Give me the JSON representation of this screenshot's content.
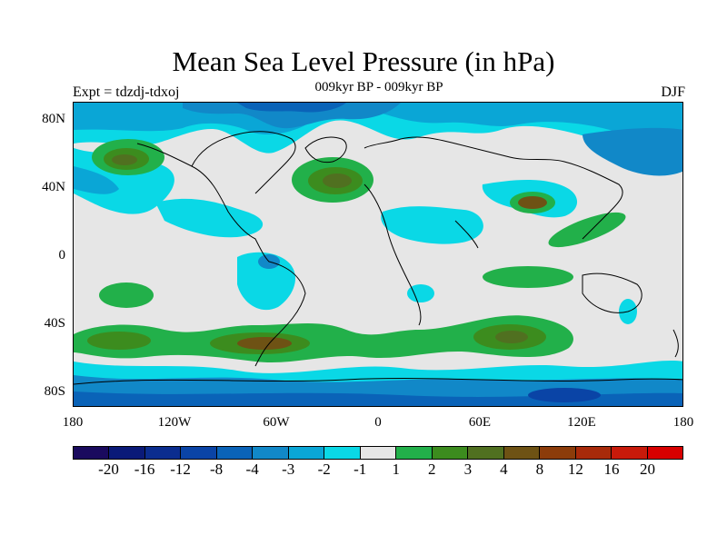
{
  "title": "Mean Sea Level Pressure (in hPa)",
  "subtitle": "009kyr BP - 009kyr BP",
  "experiment": "Expt = tdzdj-tdxoj",
  "season": "DJF",
  "lat_labels": [
    "80N",
    "40N",
    "0",
    "40S",
    "80S"
  ],
  "lon_labels": [
    "180",
    "120W",
    "60W",
    "0",
    "60E",
    "120E",
    "180"
  ],
  "colorbar": {
    "labels": [
      "-20",
      "-16",
      "-12",
      "-8",
      "-4",
      "-3",
      "-2",
      "-1",
      "1",
      "2",
      "3",
      "4",
      "8",
      "12",
      "16",
      "20"
    ],
    "colors": [
      "#1a0a5e",
      "#0a1a78",
      "#0b2d8f",
      "#0a44a6",
      "#0a63b8",
      "#1188c8",
      "#0aa6d6",
      "#0ad8e6",
      "#e6e6e6",
      "#22b04a",
      "#3c8c1e",
      "#507020",
      "#6e5214",
      "#8c3c0a",
      "#a82a0a",
      "#c81a0a",
      "#d80000"
    ]
  },
  "colors": {
    "background": "#e6e6e6",
    "coastline": "#000000"
  }
}
